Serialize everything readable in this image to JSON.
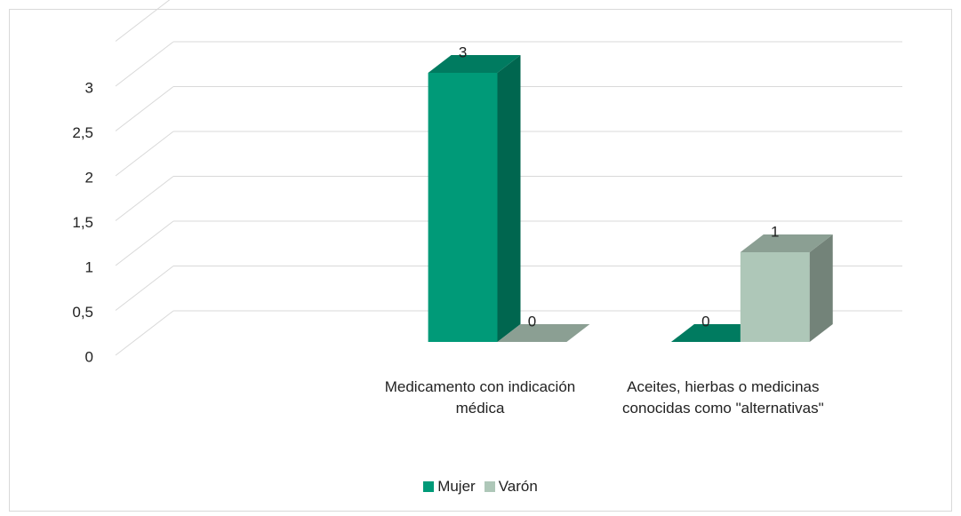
{
  "chart_data": {
    "type": "bar3d",
    "categories": [
      null,
      "Medicamento con indicación médica",
      "Aceites, hierbas o medicinas conocidas como \"alternativas\""
    ],
    "series": [
      {
        "name": "Mujer",
        "color": "#009a78",
        "values": [
          null,
          3,
          0
        ]
      },
      {
        "name": "Varón",
        "color": "#aec7b8",
        "values": [
          null,
          0,
          1
        ]
      }
    ],
    "ylim": [
      0,
      3.5
    ],
    "yticks": [
      0,
      {
        "value": 0.5,
        "label": "0,5"
      },
      1,
      {
        "value": 1.5,
        "label": "1,5"
      },
      2,
      {
        "value": 2.5,
        "label": "2,5"
      },
      3
    ],
    "grid": true,
    "legend": "bottom"
  }
}
